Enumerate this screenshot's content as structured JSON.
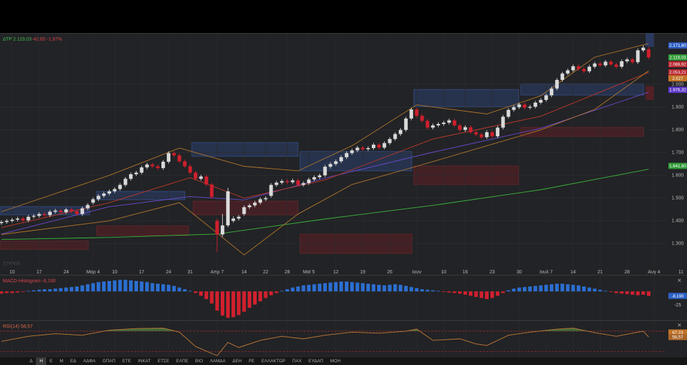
{
  "header": {
    "symbol_price": "ΔΤΡ 2.119,03",
    "change": "-42,65 -1,97%"
  },
  "watermark": "ETRADE",
  "toolbar": {
    "items": [
      "Δ",
      "Η",
      "Ε",
      "Μ",
      "ΕΔ",
      "ΑΔΦΑ",
      "ΟΠΑΠ",
      "ΕΤΕ",
      "ΙΝΚΑΤ",
      "ΕΤΣΕ",
      "ΕΛΠΕ",
      "ΒΙΟ",
      "ΛΑΜΔΑ",
      "ΔΕΗ",
      "ΡΕ",
      "ΕΛΛΑΚΤΩΡ",
      "ΠΑΧ",
      "ΕΥΔΑΠ",
      "ΜΟΗ"
    ],
    "active": 1
  },
  "chart_data": [
    {
      "type": "candlestick",
      "categories": [
        null,
        null,
        "10",
        null,
        null,
        null,
        null,
        "17",
        null,
        null,
        null,
        null,
        "24",
        null,
        null,
        null,
        null,
        "Μαρ 4",
        null,
        null,
        null,
        "10",
        null,
        null,
        null,
        null,
        "17",
        null,
        null,
        null,
        null,
        "24",
        null,
        null,
        null,
        "31",
        null,
        null,
        null,
        null,
        "Απρ 7",
        null,
        null,
        null,
        null,
        "14",
        null,
        null,
        null,
        "22",
        null,
        null,
        null,
        "28",
        null,
        null,
        null,
        "Μαϊ 5",
        null,
        null,
        null,
        null,
        "12",
        null,
        null,
        null,
        null,
        "19",
        null,
        null,
        null,
        null,
        "26",
        null,
        null,
        null,
        null,
        "Ιουν",
        null,
        null,
        null,
        null,
        "10",
        null,
        null,
        null,
        "16",
        null,
        null,
        null,
        null,
        "23",
        null,
        null,
        null,
        null,
        "30",
        null,
        null,
        null,
        null,
        "Ιουλ 7",
        null,
        null,
        null,
        null,
        "14",
        null,
        null,
        null,
        null,
        "21",
        null,
        null,
        null,
        null,
        "28",
        null,
        null,
        null,
        null,
        "Αυγ 4",
        null,
        null,
        null,
        null,
        "11"
      ],
      "open": [
        1390,
        1395,
        1400,
        1405,
        1410,
        1402,
        1418,
        1422,
        1430,
        1425,
        1440,
        1445,
        1438,
        1450,
        1442,
        1430,
        1455,
        1480,
        1495,
        1510,
        1520,
        1530,
        1540,
        1558,
        1585,
        1605,
        1612,
        1635,
        1648,
        1640,
        1632,
        1660,
        1698,
        1688,
        1662,
        1640,
        1612,
        1585,
        1595,
        1560,
        1400,
        1340,
        1380,
        1400,
        1410,
        1430,
        1460,
        1468,
        1480,
        1495,
        1510,
        1558,
        1568,
        1575,
        1570,
        1578,
        1558,
        1566,
        1582,
        1592,
        1600,
        1638,
        1650,
        1662,
        1680,
        1698,
        1710,
        1722,
        1715,
        1720,
        1735,
        1722,
        1742,
        1760,
        1782,
        1800,
        1850,
        1890,
        1862,
        1840,
        1810,
        1820,
        1826,
        1832,
        1842,
        1820,
        1800,
        1812,
        1790,
        1780,
        1768,
        1790,
        1772,
        1810,
        1858,
        1888,
        1900,
        1912,
        1898,
        1902,
        1920,
        1932,
        1952,
        1982,
        2020,
        2048,
        2062,
        2080,
        2068,
        2058,
        2078,
        2092,
        2084,
        2100,
        2088,
        2078,
        2102,
        2110,
        2098,
        2150,
        2155,
        null,
        null,
        null,
        null,
        null,
        null
      ],
      "high": [
        1403,
        1408,
        1413,
        1418,
        1418,
        1426,
        1430,
        1438,
        1438,
        1448,
        1453,
        1453,
        1458,
        1458,
        1450,
        1463,
        1478,
        1503,
        1518,
        1528,
        1538,
        1548,
        1566,
        1593,
        1613,
        1620,
        1643,
        1656,
        1656,
        1648,
        1668,
        1706,
        1706,
        1696,
        1670,
        1648,
        1620,
        1603,
        1603,
        1568,
        1410,
        1430,
        1545,
        1420,
        1426,
        1468,
        1476,
        1488,
        1503,
        1508,
        1566,
        1576,
        1583,
        1583,
        1586,
        1586,
        1574,
        1590,
        1600,
        1608,
        1646,
        1658,
        1670,
        1688,
        1706,
        1718,
        1730,
        1730,
        1728,
        1743,
        1743,
        1750,
        1768,
        1790,
        1808,
        1858,
        1898,
        1898,
        1870,
        1848,
        1828,
        1834,
        1840,
        1850,
        1850,
        1828,
        1820,
        1820,
        1798,
        1788,
        1798,
        1798,
        1818,
        1866,
        1896,
        1908,
        1920,
        1920,
        1910,
        1928,
        1940,
        1960,
        1990,
        2028,
        2056,
        2070,
        2088,
        2088,
        2076,
        2086,
        2100,
        2100,
        2108,
        2108,
        2096,
        2110,
        2118,
        2118,
        2158,
        2172,
        2165,
        null,
        null,
        null,
        null,
        null,
        null
      ],
      "low": [
        1382,
        1387,
        1392,
        1397,
        1394,
        1394,
        1410,
        1414,
        1417,
        1417,
        1432,
        1430,
        1430,
        1434,
        1422,
        1422,
        1447,
        1472,
        1487,
        1502,
        1512,
        1522,
        1532,
        1550,
        1577,
        1597,
        1604,
        1627,
        1632,
        1624,
        1624,
        1652,
        1680,
        1654,
        1632,
        1604,
        1577,
        1577,
        1552,
        1497,
        1262,
        1330,
        1372,
        1392,
        1402,
        1422,
        1452,
        1460,
        1472,
        1487,
        1502,
        1550,
        1560,
        1562,
        1562,
        1550,
        1550,
        1558,
        1574,
        1584,
        1592,
        1630,
        1642,
        1654,
        1672,
        1690,
        1702,
        1707,
        1707,
        1712,
        1714,
        1714,
        1734,
        1752,
        1774,
        1792,
        1842,
        1854,
        1832,
        1802,
        1802,
        1812,
        1818,
        1824,
        1812,
        1792,
        1792,
        1782,
        1772,
        1760,
        1760,
        1764,
        1764,
        1802,
        1850,
        1880,
        1892,
        1890,
        1890,
        1894,
        1912,
        1924,
        1944,
        1974,
        2012,
        2040,
        2054,
        2060,
        2050,
        2050,
        2070,
        2076,
        2076,
        2080,
        2070,
        2070,
        2094,
        2090,
        2090,
        2142,
        2110,
        null,
        null,
        null,
        null,
        null,
        null
      ],
      "close": [
        1395,
        1400,
        1405,
        1410,
        1402,
        1418,
        1422,
        1430,
        1425,
        1440,
        1445,
        1438,
        1450,
        1442,
        1430,
        1455,
        1470,
        1495,
        1510,
        1520,
        1530,
        1540,
        1558,
        1585,
        1605,
        1612,
        1635,
        1648,
        1640,
        1632,
        1660,
        1698,
        1688,
        1662,
        1640,
        1612,
        1585,
        1595,
        1560,
        1505,
        1340,
        1380,
        1530,
        1410,
        1418,
        1460,
        1468,
        1480,
        1495,
        1500,
        1558,
        1568,
        1575,
        1570,
        1578,
        1558,
        1566,
        1582,
        1592,
        1600,
        1638,
        1650,
        1662,
        1680,
        1698,
        1710,
        1722,
        1715,
        1720,
        1735,
        1722,
        1742,
        1760,
        1782,
        1800,
        1850,
        1890,
        1862,
        1840,
        1810,
        1820,
        1826,
        1832,
        1842,
        1820,
        1800,
        1812,
        1790,
        1780,
        1768,
        1790,
        1772,
        1810,
        1858,
        1888,
        1900,
        1912,
        1898,
        1902,
        1920,
        1932,
        1952,
        1982,
        2020,
        2048,
        2062,
        2080,
        2068,
        2058,
        2078,
        2092,
        2084,
        2100,
        2088,
        2078,
        2102,
        2110,
        2098,
        2150,
        2161.68,
        2119.03,
        null,
        null,
        null,
        null,
        null,
        null
      ],
      "up_color": "#d9d9d9",
      "down_color": "#cf1f2c",
      "ylim": [
        1190,
        2220
      ],
      "yticks": [
        {
          "value": 1300,
          "label": "1.300"
        },
        {
          "value": 1400,
          "label": "1.400"
        },
        {
          "value": 1500,
          "label": "1.500"
        },
        {
          "value": 1600,
          "label": "1.600"
        },
        {
          "value": 1700,
          "label": "1.700"
        },
        {
          "value": 1800,
          "label": "1.800"
        },
        {
          "value": 1900,
          "label": "1.900"
        },
        {
          "value": 2000,
          "label": "2.000"
        }
      ],
      "grid": true,
      "overlays": [
        {
          "color": "#3cb93c",
          "x": [
            0,
            20,
            40,
            60,
            80,
            100,
            120
          ],
          "values": [
            1318,
            1327,
            1342,
            1408,
            1468,
            1537,
            1627
          ]
        },
        {
          "color": "#6a4ad0",
          "x": [
            0,
            20,
            35,
            45,
            60,
            80,
            100,
            120
          ],
          "values": [
            1342,
            1462,
            1507,
            1492,
            1588,
            1702,
            1807,
            1966
          ]
        },
        {
          "color": "#c0392b",
          "x": [
            0,
            20,
            35,
            45,
            60,
            80,
            100,
            120
          ],
          "values": [
            1370,
            1480,
            1590,
            1500,
            1580,
            1760,
            1860,
            2053
          ]
        },
        {
          "color": "#b5782c",
          "x": [
            0,
            20,
            33,
            45,
            55,
            65,
            77,
            90,
            100,
            110,
            120
          ],
          "values": [
            1440,
            1600,
            1720,
            1640,
            1620,
            1730,
            1910,
            1870,
            1950,
            2120,
            2180
          ]
        },
        {
          "color": "#b5782c",
          "x": [
            0,
            20,
            33,
            45,
            55,
            65,
            77,
            90,
            100,
            110,
            120
          ],
          "values": [
            1340,
            1400,
            1480,
            1250,
            1430,
            1560,
            1640,
            1730,
            1800,
            1890,
            2060
          ]
        }
      ],
      "price_tags": [
        {
          "value": 2171.6,
          "label": "2.171,60",
          "color": "#2d5fc4"
        },
        {
          "value": 2119.03,
          "label": "2.119,03",
          "color": "#2f9a35"
        },
        {
          "value": 2088.92,
          "label": "2.088,92",
          "color": "#b8262f"
        },
        {
          "value": 2053.21,
          "label": "2.053,21",
          "color": "#b8262f"
        },
        {
          "value": 2027,
          "label": "2.027",
          "color": "#c27429"
        },
        {
          "value": 1976.32,
          "label": "1.976,32",
          "color": "#5b36c8"
        },
        {
          "value": 1641.6,
          "label": "1.641,60",
          "color": "#2f9a35"
        }
      ]
    },
    {
      "type": "bar",
      "title": "MACD-Histogram -8,190",
      "values": [
        -4,
        -3,
        -3,
        -2,
        -1,
        1,
        2,
        3,
        4,
        4,
        5,
        6,
        7,
        8,
        9,
        11,
        13,
        15,
        17,
        18,
        19,
        20,
        21,
        21,
        20,
        19,
        18,
        17,
        15,
        14,
        13,
        12,
        10,
        7,
        4,
        1,
        -3,
        -8,
        -14,
        -22,
        -35,
        -44,
        -48,
        -47,
        -43,
        -37,
        -30,
        -24,
        -18,
        -12,
        -7,
        -3,
        1,
        4,
        7,
        9,
        11,
        12,
        13,
        14,
        15,
        16,
        17,
        18,
        18,
        17,
        16,
        15,
        14,
        13,
        12,
        11,
        12,
        13,
        12,
        10,
        8,
        6,
        4,
        3,
        2,
        1,
        -1,
        -2,
        -3,
        -4,
        -6,
        -8,
        -10,
        -12,
        -14,
        -12,
        -8,
        -3,
        2,
        5,
        7,
        8,
        9,
        10,
        11,
        12,
        13,
        14,
        14,
        13,
        12,
        11,
        9,
        7,
        5,
        3,
        1,
        -1,
        -3,
        -4,
        -5,
        -6,
        -7,
        -6,
        -8.19,
        null,
        null,
        null,
        null,
        null,
        null
      ],
      "pos_color": "#2b6fd3",
      "neg_color": "#d2202e",
      "ylim": [
        -50,
        29
      ],
      "yticks": [
        -25
      ],
      "price_tags": [
        {
          "value": -8.19,
          "label": "-8,190",
          "color": "#2d5fc4"
        }
      ]
    },
    {
      "type": "line",
      "title": "RSI(14) 58,57",
      "x": [
        0,
        5,
        10,
        15,
        20,
        25,
        30,
        33,
        36,
        40,
        42,
        44,
        48,
        52,
        56,
        60,
        65,
        70,
        75,
        77,
        80,
        85,
        88,
        90,
        94,
        98,
        103,
        106,
        110,
        114,
        117,
        119,
        120
      ],
      "values": [
        50,
        60,
        65,
        62,
        72,
        75,
        76,
        68,
        40,
        22,
        48,
        38,
        52,
        60,
        55,
        62,
        68,
        66,
        70,
        74,
        52,
        55,
        45,
        42,
        62,
        68,
        74,
        76,
        67,
        60,
        66,
        70,
        58.57
      ],
      "color": "#c47c36",
      "ylim": [
        20,
        90
      ],
      "hlines": [
        70,
        30
      ],
      "fill_above": 70,
      "fill_color": "#3f6a3a",
      "price_tags": [
        {
          "value": 67.23,
          "label": "67,23",
          "color": "#c27429"
        },
        {
          "value": 58.57,
          "label": "58,57",
          "color": "#a8652a"
        }
      ]
    }
  ]
}
